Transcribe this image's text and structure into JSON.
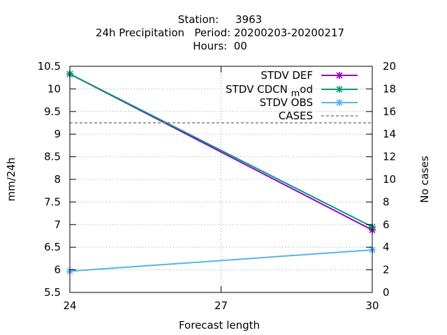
{
  "chart_data": {
    "type": "line",
    "title_lines": [
      "Station:     3963",
      "24h Precipitation   Period: 20200203-20200217",
      "Hours:  00"
    ],
    "xlabel": "Forecast length",
    "ylabel": "mm/24h",
    "y2label": "No cases",
    "x_ticks": [
      24,
      27,
      30
    ],
    "xlim": [
      24,
      30
    ],
    "ylim": [
      5.5,
      10.5
    ],
    "y_ticks": [
      "5.5",
      "6",
      "6.5",
      "7",
      "7.5",
      "8",
      "8.5",
      "9",
      "9.5",
      "10",
      "10.5"
    ],
    "y2lim": [
      0,
      20
    ],
    "y2_ticks": [
      "0",
      "2",
      "4",
      "6",
      "8",
      "10",
      "12",
      "14",
      "16",
      "18",
      "20"
    ],
    "grid": true,
    "legend_position": "top-right",
    "series": [
      {
        "name": "STDV DEF",
        "color": "#9400d3",
        "marker": "x-star",
        "x": [
          24,
          30
        ],
        "y": [
          10.33,
          6.88
        ]
      },
      {
        "name": "STDV CDCN",
        "name_sub": "m",
        "name_tail": "od",
        "color": "#009e73",
        "marker": "x-star",
        "x": [
          24,
          30
        ],
        "y": [
          10.33,
          6.95
        ]
      },
      {
        "name": "STDV OBS",
        "color": "#56b4e9",
        "marker": "x-star",
        "x": [
          24,
          30
        ],
        "y": [
          5.97,
          6.44
        ]
      },
      {
        "name": "CASES",
        "color": "#808080",
        "dashed": true,
        "axis": "y2",
        "x": [
          24,
          30
        ],
        "y": [
          15,
          15
        ]
      }
    ]
  }
}
